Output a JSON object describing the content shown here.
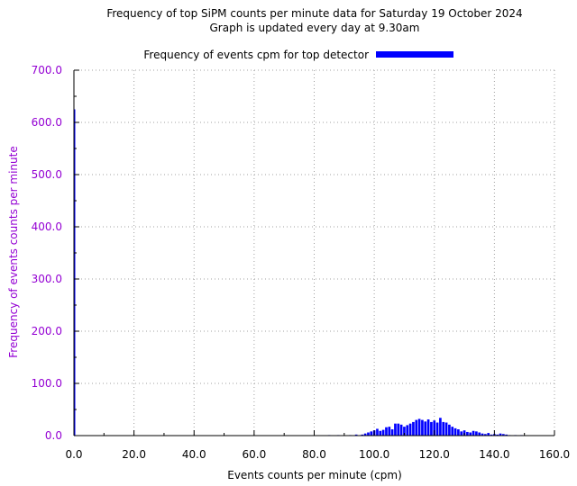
{
  "chart_data": {
    "type": "bar",
    "title": "Frequency of top SiPM counts per minute data for Saturday 19 October 2024",
    "subtitle": "Graph is updated every day at 9.30am",
    "xlabel": "Events counts per minute (cpm)",
    "ylabel": "Frequency of events counts per minute",
    "xlim": [
      0,
      160
    ],
    "ylim": [
      0,
      700
    ],
    "xticks": [
      0,
      20,
      40,
      60,
      80,
      100,
      120,
      140,
      160
    ],
    "xtick_labels": [
      "0.0",
      "20.0",
      "40.0",
      "60.0",
      "80.0",
      "100.0",
      "120.0",
      "140.0",
      "160.0"
    ],
    "yticks": [
      0,
      100,
      200,
      300,
      400,
      500,
      600,
      700
    ],
    "ytick_labels": [
      "0.0",
      "100.0",
      "200.0",
      "300.0",
      "400.0",
      "500.0",
      "600.0",
      "700.0"
    ],
    "grid": true,
    "legend_position": "top",
    "colors": {
      "bars": "#0000ff",
      "y_axis_text": "#9400d3"
    },
    "series": [
      {
        "name": "Frequency of events cpm for top detector",
        "x": [
          0,
          85,
          88,
          92,
          94,
          96,
          97,
          98,
          99,
          100,
          101,
          102,
          103,
          104,
          105,
          106,
          107,
          108,
          109,
          110,
          111,
          112,
          113,
          114,
          115,
          116,
          117,
          118,
          119,
          120,
          121,
          122,
          123,
          124,
          125,
          126,
          127,
          128,
          129,
          130,
          131,
          132,
          133,
          134,
          135,
          136,
          137,
          138,
          139,
          140,
          141,
          142,
          143,
          144,
          145,
          147,
          149
        ],
        "values": [
          625,
          1,
          1,
          1,
          2,
          2,
          4,
          6,
          8,
          10,
          13,
          9,
          11,
          16,
          17,
          12,
          23,
          23,
          21,
          17,
          20,
          23,
          26,
          30,
          32,
          30,
          27,
          31,
          26,
          29,
          25,
          34,
          26,
          25,
          21,
          17,
          14,
          12,
          8,
          10,
          7,
          6,
          9,
          8,
          6,
          4,
          3,
          5,
          2,
          3,
          2,
          4,
          3,
          2,
          1,
          1,
          1
        ]
      }
    ]
  }
}
